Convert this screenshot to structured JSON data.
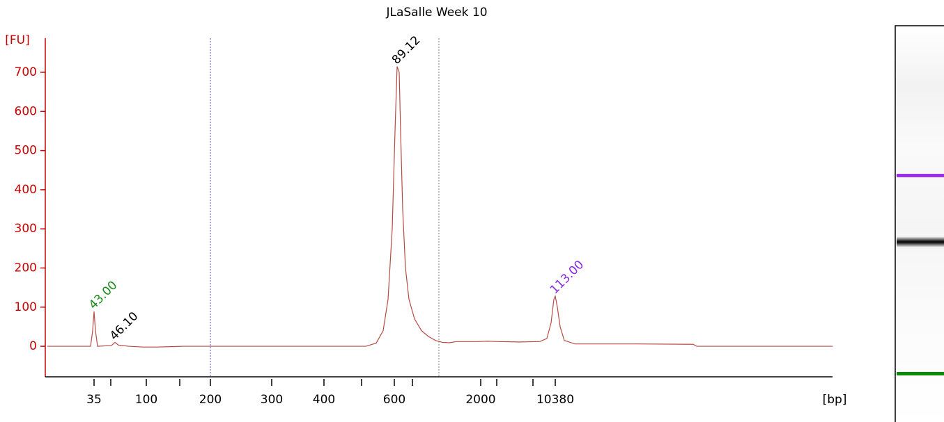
{
  "chart_data": {
    "type": "line",
    "title": "JLaSalle Week 10",
    "ylabel": "[FU]",
    "xlabel": "[bp]",
    "color": "#b84a44",
    "axis_color": "#cc0000",
    "x": [
      0.3,
      5,
      6.5,
      6.8,
      7.0,
      7.2,
      7.5,
      9.5,
      10,
      10.5,
      12,
      14,
      16,
      18,
      20,
      30,
      40,
      46,
      47.5,
      48.5,
      49.2,
      49.8,
      50.2,
      50.5,
      50.8,
      51.0,
      51.3,
      51.7,
      52.2,
      53,
      54,
      55,
      56,
      57,
      58,
      59,
      62,
      63.5,
      65,
      68,
      71,
      72,
      72.6,
      73.0,
      73.2,
      73.5,
      73.9,
      74.5,
      76,
      85,
      93,
      93.5,
      113
    ],
    "values": [
      0,
      0,
      0,
      40,
      89,
      40,
      0,
      2,
      10,
      3,
      0,
      -2,
      -2,
      -1,
      0,
      0,
      0,
      0,
      8,
      40,
      120,
      300,
      550,
      715,
      700,
      550,
      350,
      200,
      120,
      70,
      40,
      25,
      15,
      10,
      9,
      12,
      12,
      13,
      12,
      11,
      12,
      20,
      60,
      120,
      128,
      100,
      50,
      15,
      6,
      6,
      5,
      0,
      0
    ],
    "xlim": [
      0,
      113
    ],
    "ylim": [
      -78,
      787
    ],
    "yticks": [
      0,
      100,
      200,
      300,
      400,
      500,
      600,
      700
    ],
    "xticks": [
      {
        "value": 7.0,
        "label": "35"
      },
      {
        "value": 14.5,
        "label": "100"
      },
      {
        "value": 23.7,
        "label": "200"
      },
      {
        "value": 32.5,
        "label": "300"
      },
      {
        "value": 40.0,
        "label": "400"
      },
      {
        "value": 50.1,
        "label": "600"
      },
      {
        "value": 62.5,
        "label": "2000"
      },
      {
        "value": 73.2,
        "label": "10380"
      }
    ],
    "xminorticks": [
      9.4,
      19.3,
      45.4,
      52.7,
      64.8,
      70.0
    ],
    "vlines": [
      {
        "x": 23.7,
        "color": "#4b4bd6"
      },
      {
        "x": 56.5,
        "color": "#7a7a9a"
      }
    ],
    "annotations": [
      {
        "text": "43.00",
        "x": 7.0,
        "y": 89,
        "color": "#1a8a1a"
      },
      {
        "text": "46.10",
        "x": 10.0,
        "y": 10,
        "color": "#000000"
      },
      {
        "text": "89.12",
        "x": 50.5,
        "y": 715,
        "color": "#000000"
      },
      {
        "text": "113.00",
        "x": 73.2,
        "y": 128,
        "color": "#8a2be2"
      }
    ]
  }
}
